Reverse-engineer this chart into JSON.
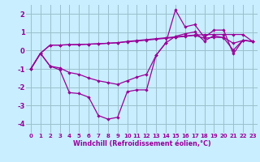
{
  "x": [
    0,
    1,
    2,
    3,
    4,
    5,
    6,
    7,
    8,
    9,
    10,
    11,
    12,
    13,
    14,
    15,
    16,
    17,
    18,
    19,
    20,
    21,
    22,
    23
  ],
  "line1": [
    -1.0,
    -0.15,
    0.3,
    0.3,
    0.32,
    0.33,
    0.35,
    0.37,
    0.4,
    0.43,
    0.5,
    0.55,
    0.6,
    0.65,
    0.7,
    0.75,
    0.8,
    0.85,
    0.87,
    0.88,
    0.88,
    0.88,
    0.88,
    0.5
  ],
  "line2": [
    -1.0,
    -0.15,
    0.3,
    0.3,
    0.32,
    0.33,
    0.35,
    0.37,
    0.4,
    0.43,
    0.48,
    0.52,
    0.57,
    0.62,
    0.67,
    0.72,
    0.78,
    0.83,
    0.68,
    0.72,
    0.72,
    0.4,
    0.55,
    0.5
  ],
  "line3": [
    -1.0,
    -0.15,
    -0.85,
    -0.95,
    -1.2,
    -1.3,
    -1.5,
    -1.65,
    -1.75,
    -1.85,
    -1.65,
    -1.45,
    -1.3,
    -0.25,
    0.42,
    0.78,
    0.92,
    1.02,
    0.52,
    0.82,
    0.7,
    0.02,
    0.57,
    0.5
  ],
  "line4": [
    -1.0,
    -0.15,
    -0.85,
    -1.05,
    -2.3,
    -2.35,
    -2.55,
    -3.55,
    -3.75,
    -3.65,
    -2.25,
    -2.15,
    -2.15,
    -0.25,
    0.42,
    2.22,
    1.3,
    1.42,
    0.72,
    1.12,
    1.12,
    -0.18,
    0.57,
    0.5
  ],
  "line_color": "#990099",
  "bg_color": "#c8eeff",
  "grid_color": "#9bbfcc",
  "ylim": [
    -4.5,
    2.5
  ],
  "xlim": [
    -0.5,
    23.5
  ],
  "yticks": [
    -4,
    -3,
    -2,
    -1,
    0,
    1,
    2
  ],
  "xticks": [
    0,
    1,
    2,
    3,
    4,
    5,
    6,
    7,
    8,
    9,
    10,
    11,
    12,
    13,
    14,
    15,
    16,
    17,
    18,
    19,
    20,
    21,
    22,
    23
  ],
  "xlabel": "Windchill (Refroidissement éolien,°C)",
  "xlabel_color": "#990099",
  "tick_color": "#990099",
  "marker": "D",
  "markersize": 2.2,
  "linewidth": 0.9
}
